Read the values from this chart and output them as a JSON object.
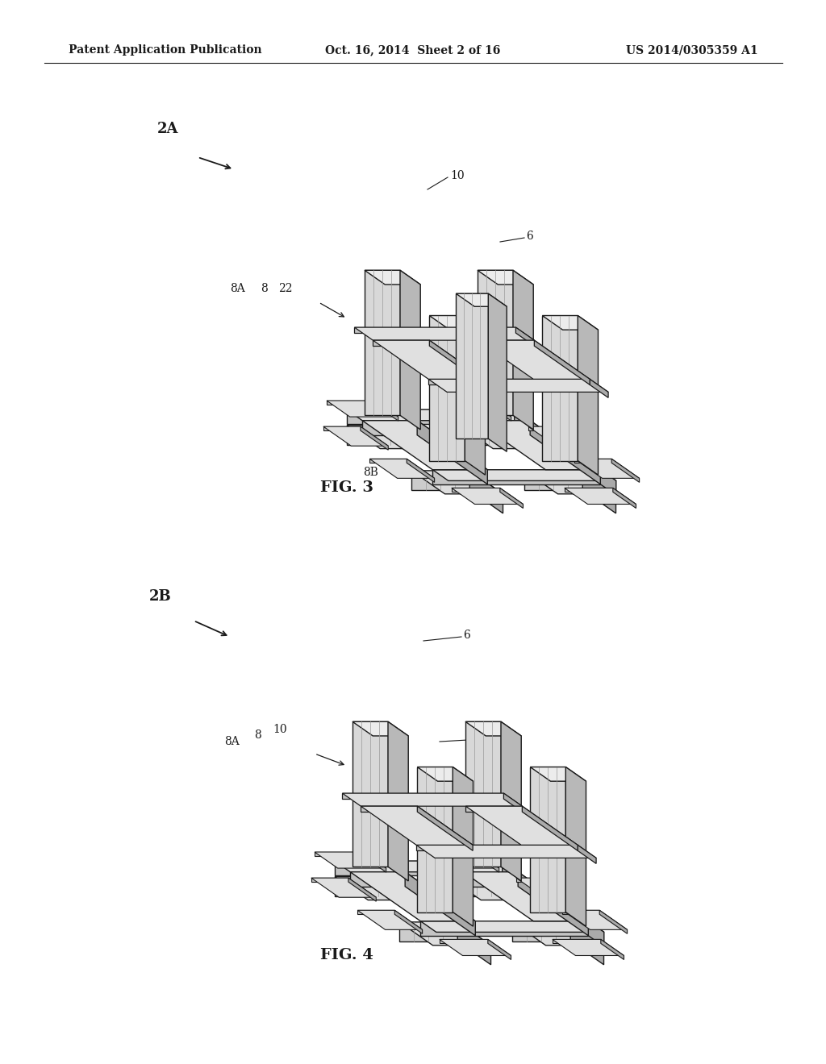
{
  "background_color": "#ffffff",
  "header_left": "Patent Application Publication",
  "header_center": "Oct. 16, 2014  Sheet 2 of 16",
  "header_right": "US 2014/0305359 A1",
  "header_fontsize": 10,
  "fig3_label": "FIG. 3",
  "fig4_label": "FIG. 4",
  "fig3_tag": "2A",
  "fig4_tag": "2B",
  "line_color": "#1a1a1a",
  "col_front": "#d8d8d8",
  "col_side": "#b8b8b8",
  "col_top": "#ececec",
  "beam_top": "#e0e0e0",
  "beam_front": "#c4c4c4",
  "beam_side": "#aaaaaa",
  "pont_front": "#cccccc",
  "pont_side": "#aaaaaa",
  "pont_top": "#dedede",
  "shade_color": "#888888",
  "line_width": 1.0
}
